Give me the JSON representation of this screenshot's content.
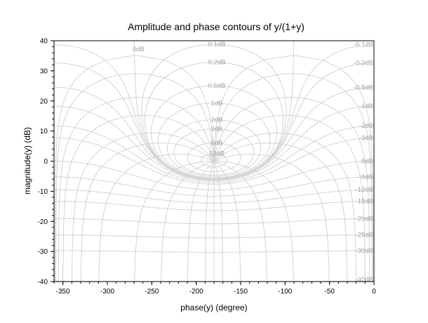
{
  "chart_data": {
    "type": "line",
    "subtype": "nichols-chart",
    "title": "Amplitude and phase contours of y/(1+y)",
    "xlabel": "phase(y) (degree)",
    "ylabel": "magnitude(y) (dB)",
    "xlim": [
      -360,
      0
    ],
    "ylim": [
      -40,
      40
    ],
    "xticks": [
      -350,
      -300,
      -250,
      -200,
      -150,
      -100,
      -50,
      0
    ],
    "yticks": [
      -40,
      -30,
      -20,
      -10,
      0,
      10,
      20,
      30,
      40
    ],
    "grid": false,
    "magnitude_contours_db": [
      0,
      0.1,
      0.2,
      0.5,
      1,
      2,
      3,
      6,
      12,
      -0.1,
      -0.2,
      -0.5,
      -1,
      -2,
      -3,
      -6,
      -9,
      -12,
      -15,
      -20,
      -25,
      -30,
      -40
    ],
    "magnitude_labels": [
      "0dB",
      "0.1dB",
      "0.2dB",
      "0.5dB",
      "1dB",
      "2dB",
      "3dB",
      "6dB",
      "12dB",
      "-0.1dB",
      "-0.2dB",
      "-0.5dB",
      "-1dB",
      "-2dB",
      "-3dB",
      "-6dB",
      "-9dB",
      "-12dB",
      "-15dB",
      "-20dB",
      "-25dB",
      "-30dB",
      "-40dB"
    ],
    "phase_contours_deg": [
      -1,
      -2,
      -5,
      -10,
      -20,
      -30,
      -50,
      -90,
      -120,
      -150,
      -170,
      -180,
      -190,
      -210,
      -240,
      -270,
      -310,
      -330,
      -340,
      -350,
      -355,
      -358,
      -359
    ],
    "contour_color": "#d3d3d3",
    "label_color": "#a0a0a0"
  }
}
